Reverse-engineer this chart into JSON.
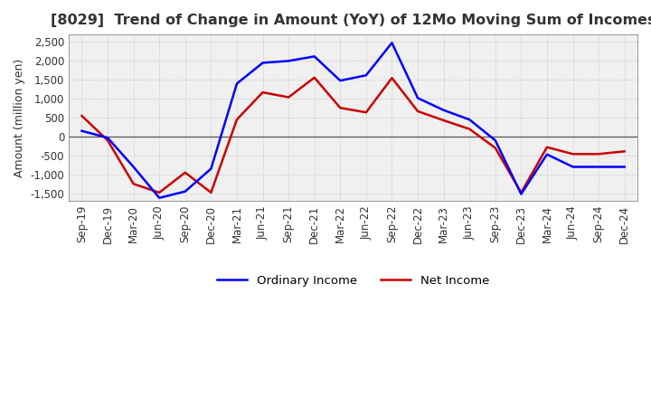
{
  "title": "[8029]  Trend of Change in Amount (YoY) of 12Mo Moving Sum of Incomes",
  "ylabel": "Amount (million yen)",
  "x_labels": [
    "Sep-19",
    "Dec-19",
    "Mar-20",
    "Jun-20",
    "Sep-20",
    "Dec-20",
    "Mar-21",
    "Jun-21",
    "Sep-21",
    "Dec-21",
    "Mar-22",
    "Jun-22",
    "Sep-22",
    "Dec-22",
    "Mar-23",
    "Jun-23",
    "Sep-23",
    "Dec-23",
    "Mar-24",
    "Jun-24",
    "Sep-24",
    "Dec-24"
  ],
  "ordinary_income": [
    150,
    -30,
    -800,
    -1620,
    -1450,
    -850,
    1400,
    1950,
    2000,
    2120,
    1480,
    1620,
    2480,
    1020,
    700,
    450,
    -100,
    -1520,
    -470,
    -800,
    -800,
    -800
  ],
  "net_income": [
    550,
    -100,
    -1250,
    -1480,
    -950,
    -1480,
    450,
    1170,
    1040,
    1560,
    760,
    640,
    1550,
    670,
    430,
    200,
    -300,
    -1480,
    -280,
    -460,
    -460,
    -390
  ],
  "ordinary_color": "#0000ff",
  "net_color": "#cc0000",
  "ylim": [
    -1700,
    2700
  ],
  "yticks": [
    -1500,
    -1000,
    -500,
    0,
    500,
    1000,
    1500,
    2000,
    2500
  ],
  "bg_color": "#ffffff",
  "plot_bg_color": "#f0f0f0",
  "grid_color": "#bbbbbb",
  "title_color": "#333333",
  "title_fontsize": 11.5,
  "axis_fontsize": 8.5,
  "legend_fontsize": 9.5
}
